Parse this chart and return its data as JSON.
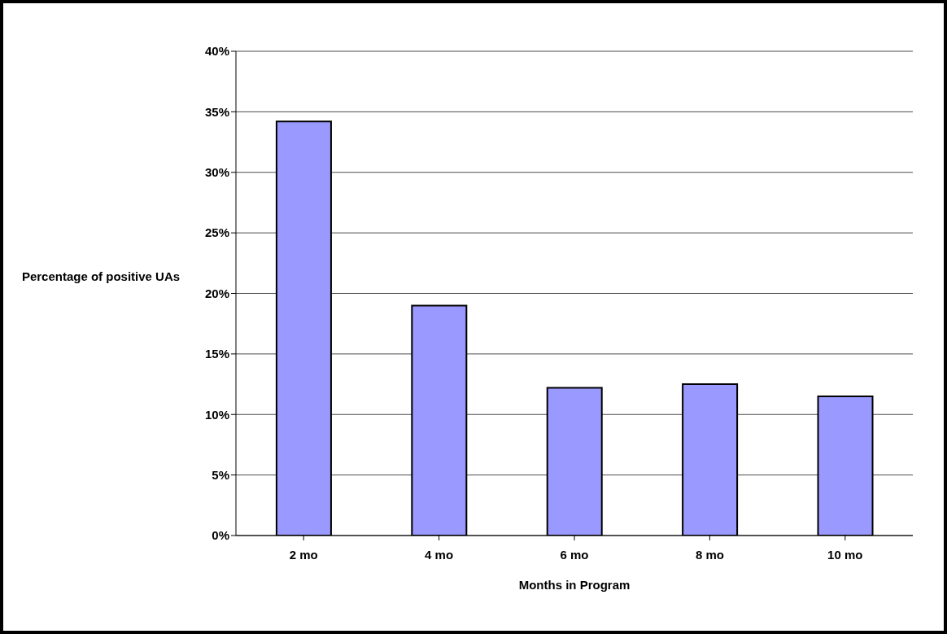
{
  "chart_data": {
    "type": "bar",
    "xlabel": "Months in Program",
    "ylabel": "Percentage of positive UAs",
    "categories": [
      "2 mo",
      "4 mo",
      "6 mo",
      "8 mo",
      "10 mo"
    ],
    "values": [
      34.2,
      19.0,
      12.2,
      12.5,
      11.5
    ],
    "color": "#9999ff",
    "ylim": [
      0,
      40
    ],
    "yticks": [
      {
        "value": 0,
        "label": "0%"
      },
      {
        "value": 5,
        "label": "5%"
      },
      {
        "value": 10,
        "label": "10%"
      },
      {
        "value": 15,
        "label": "15%"
      },
      {
        "value": 20,
        "label": "20%"
      },
      {
        "value": 25,
        "label": "25%"
      },
      {
        "value": 30,
        "label": "30%"
      },
      {
        "value": 35,
        "label": "35%"
      },
      {
        "value": 40,
        "label": "40%"
      }
    ],
    "grid": "y",
    "legend": false
  }
}
